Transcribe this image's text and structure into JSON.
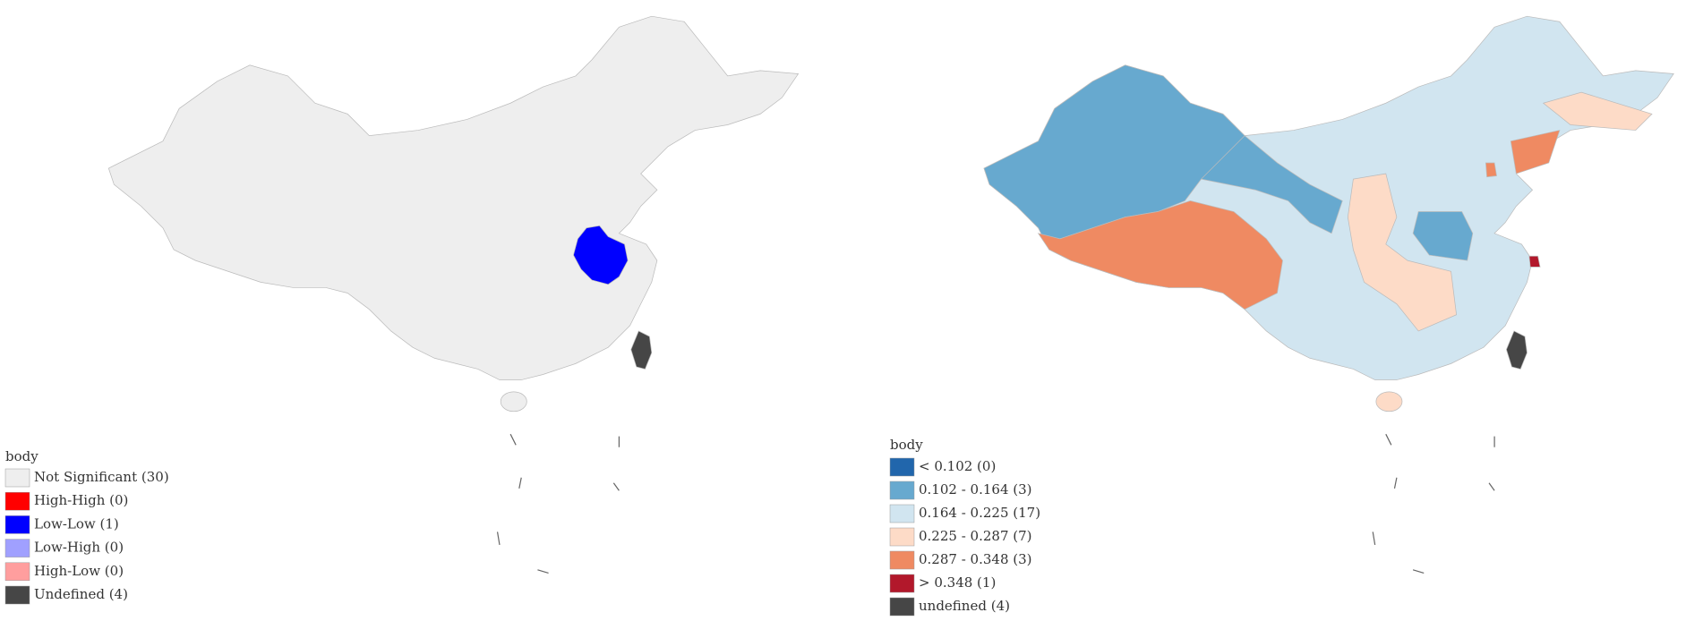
{
  "left_map": {
    "legend": {
      "title": "body",
      "items": [
        {
          "label": "Not Significant (30)",
          "color": "#eeeeee"
        },
        {
          "label": "High-High (0)",
          "color": "#ff0000"
        },
        {
          "label": "Low-Low (1)",
          "color": "#0000ff"
        },
        {
          "label": "Low-High (0)",
          "color": "#a0a0ff"
        },
        {
          "label": "High-Low (0)",
          "color": "#ff9e9e"
        },
        {
          "label": "Undefined (4)",
          "color": "#464646"
        }
      ]
    }
  },
  "right_map": {
    "legend": {
      "title": "body",
      "items": [
        {
          "label": "< 0.102 (0)",
          "color": "#2166ac"
        },
        {
          "label": "0.102 - 0.164 (3)",
          "color": "#67a9cf"
        },
        {
          "label": "0.164 - 0.225 (17)",
          "color": "#d1e5f0"
        },
        {
          "label": "0.225 - 0.287 (7)",
          "color": "#fddbc7"
        },
        {
          "label": "0.287 - 0.348 (3)",
          "color": "#ef8a62"
        },
        {
          "label": "> 0.348 (1)",
          "color": "#b2182b"
        },
        {
          "label": "undefined (4)",
          "color": "#464646"
        }
      ]
    }
  }
}
